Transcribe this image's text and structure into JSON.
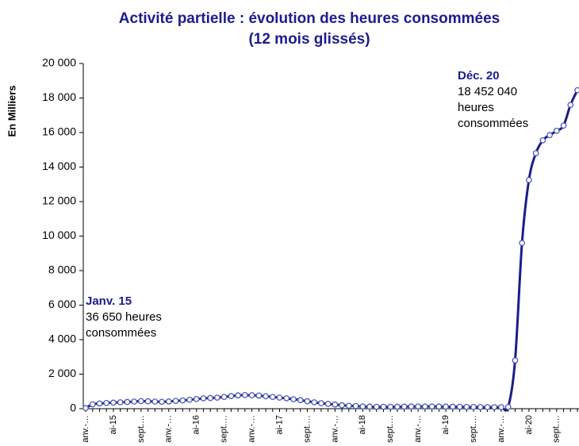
{
  "chart_data": {
    "type": "line",
    "title": [
      "Activité partielle : évolution des heures consommées",
      "(12 mois glissés)"
    ],
    "y_label": "En Milliers",
    "categories": [
      "anv.-…",
      null,
      null,
      null,
      "ai-15",
      null,
      null,
      null,
      "sept.…",
      null,
      null,
      null,
      "anv.-…",
      null,
      null,
      null,
      "ai-16",
      null,
      null,
      null,
      "sept.…",
      null,
      null,
      null,
      "anv.-…",
      null,
      null,
      null,
      "ai-17",
      null,
      null,
      null,
      "sept.…",
      null,
      null,
      null,
      "anv.-…",
      null,
      null,
      null,
      "ai-18",
      null,
      null,
      null,
      "sept.…",
      null,
      null,
      null,
      "anv.-…",
      null,
      null,
      null,
      "ai-19",
      null,
      null,
      null,
      "sept.…",
      null,
      null,
      null,
      "anv.-…",
      null,
      null,
      null,
      "ai-20",
      null,
      null,
      null,
      "sept.…",
      null,
      null,
      null
    ],
    "series": [
      {
        "name": "Heures consommées",
        "color": "#1c1c8e",
        "values": [
          36.65,
          250,
          300,
          330,
          350,
          370,
          390,
          410,
          440,
          430,
          410,
          400,
          420,
          450,
          480,
          520,
          560,
          600,
          620,
          640,
          680,
          730,
          770,
          790,
          780,
          760,
          720,
          680,
          640,
          600,
          550,
          500,
          430,
          370,
          320,
          280,
          240,
          200,
          170,
          150,
          130,
          120,
          110,
          110,
          110,
          115,
          120,
          125,
          130,
          130,
          130,
          125,
          120,
          115,
          110,
          105,
          100,
          95,
          90,
          90,
          90,
          100,
          2800,
          9600,
          13250,
          14800,
          15550,
          15850,
          16100,
          16400,
          17600,
          18452.04
        ]
      }
    ],
    "ylim": [
      0,
      20000
    ],
    "yticks": [
      0,
      {
        "value": 2000,
        "label": "2 000"
      },
      {
        "value": 4000,
        "label": "4 000"
      },
      {
        "value": 6000,
        "label": "6 000"
      },
      {
        "value": 8000,
        "label": "8 000"
      },
      {
        "value": 10000,
        "label": "10 000"
      },
      {
        "value": 12000,
        "label": "12 000"
      },
      {
        "value": 14000,
        "label": "14 000"
      },
      {
        "value": 16000,
        "label": "16 000"
      },
      {
        "value": 18000,
        "label": "18 000"
      },
      {
        "value": 20000,
        "label": "20 000"
      }
    ],
    "annotations": [
      {
        "title": "Janv. 15",
        "lines": [
          "36 650 heures",
          "consommées"
        ]
      },
      {
        "title": "Déc. 20",
        "lines": [
          "18 452 040",
          "heures",
          "consommées"
        ]
      }
    ]
  }
}
